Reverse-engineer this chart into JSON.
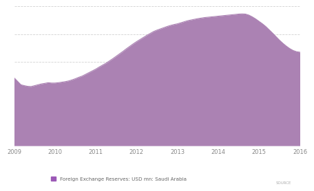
{
  "fill_color": "#ab82b3",
  "background_color": "#ffffff",
  "legend_label": "Foreign Exchange Reserves: USD mn: Saudi Arabia",
  "legend_color": "#9b59b6",
  "grid_color": "#cccccc",
  "x_labels": [
    "2009",
    "2010",
    "2011",
    "2012",
    "2013",
    "2014",
    "2015",
    "2016"
  ],
  "source_text": "SOURCE",
  "values": [
    390000,
    370000,
    350000,
    345000,
    341000,
    340000,
    345000,
    350000,
    355000,
    358000,
    362000,
    360000,
    360000,
    362000,
    365000,
    368000,
    372000,
    378000,
    385000,
    393000,
    400000,
    410000,
    420000,
    430000,
    440000,
    452000,
    463000,
    474000,
    487000,
    500000,
    514000,
    528000,
    542000,
    557000,
    571000,
    585000,
    598000,
    610000,
    622000,
    634000,
    645000,
    656000,
    664000,
    671000,
    678000,
    685000,
    691000,
    696000,
    700000,
    706000,
    712000,
    718000,
    722000,
    726000,
    730000,
    733000,
    736000,
    738000,
    740000,
    742000,
    744000,
    746000,
    748000,
    750000,
    752000,
    754000,
    756000,
    757000,
    756000,
    750000,
    740000,
    728000,
    714000,
    700000,
    684000,
    665000,
    646000,
    626000,
    606000,
    588000,
    572000,
    558000,
    547000,
    540000,
    537000
  ],
  "ylim_max": 800000,
  "gridlines_y": [
    160000,
    320000,
    480000,
    640000,
    800000
  ]
}
